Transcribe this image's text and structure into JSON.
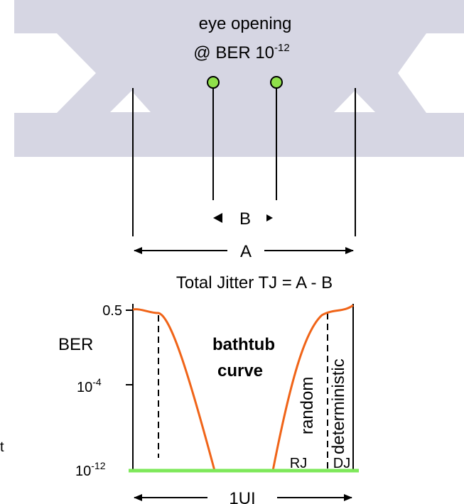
{
  "eye": {
    "title_line1": "eye opening",
    "title_line2_prefix": "@ BER 10",
    "title_line2_exp": "-12",
    "band_color": "#d6d6e3",
    "marker_color": "#8fe04a"
  },
  "dimensions": {
    "b_label": "B",
    "a_label": "A",
    "total_jitter_label": "Total Jitter TJ = A - B"
  },
  "bathtub": {
    "y_label": "BER",
    "tick_top": "0.5",
    "tick_mid_base": "10",
    "tick_mid_exp": "-4",
    "tick_bottom_base": "10",
    "tick_bottom_exp": "-12",
    "name_line1": "bathtub",
    "name_line2": "curve",
    "random_label": "random",
    "deterministic_label": "deterministic",
    "rj_label": "RJ",
    "dj_label": "DJ",
    "ui_label": "1UI",
    "curve_color": "#f06418",
    "ber_line_color": "#7ee85a"
  },
  "margin_fragment": "t"
}
